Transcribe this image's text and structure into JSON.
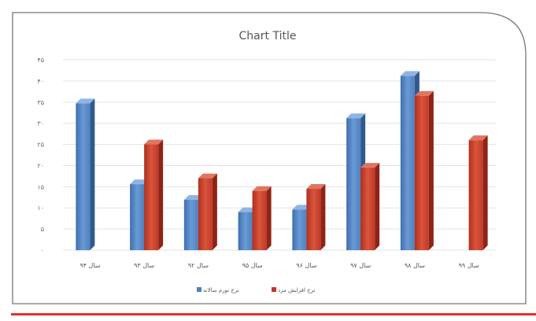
{
  "chart_data": {
    "type": "bar",
    "title": "Chart Title",
    "categories": [
      "سال ۹۴",
      "سال ۹۳",
      "سال ۹۲",
      "سال ۹۵",
      "سال ۹۶",
      "سال ۹۷",
      "سال ۹۸",
      "سال ۹۹"
    ],
    "series": [
      {
        "name": "نرخ تورم سالانه",
        "color": "#4f81bd",
        "values": [
          34.7,
          15.6,
          11.9,
          9.0,
          9.6,
          31.2,
          41.2,
          null
        ]
      },
      {
        "name": "نرخ افزایش مزد",
        "color": "#c0392b",
        "values": [
          null,
          25.0,
          17.0,
          14.0,
          14.5,
          19.5,
          36.5,
          26.0
        ]
      }
    ],
    "yticks": [
      "۰",
      "۵",
      "۱۰",
      "۱۵",
      "۲۰",
      "۲۵",
      "۳۰",
      "۳۵",
      "۴۰",
      "۴۵"
    ],
    "ylim": [
      0,
      45
    ],
    "grid": true,
    "legend_position": "bottom",
    "accent_line_color": "#e03030",
    "frame_color": "#777777"
  }
}
